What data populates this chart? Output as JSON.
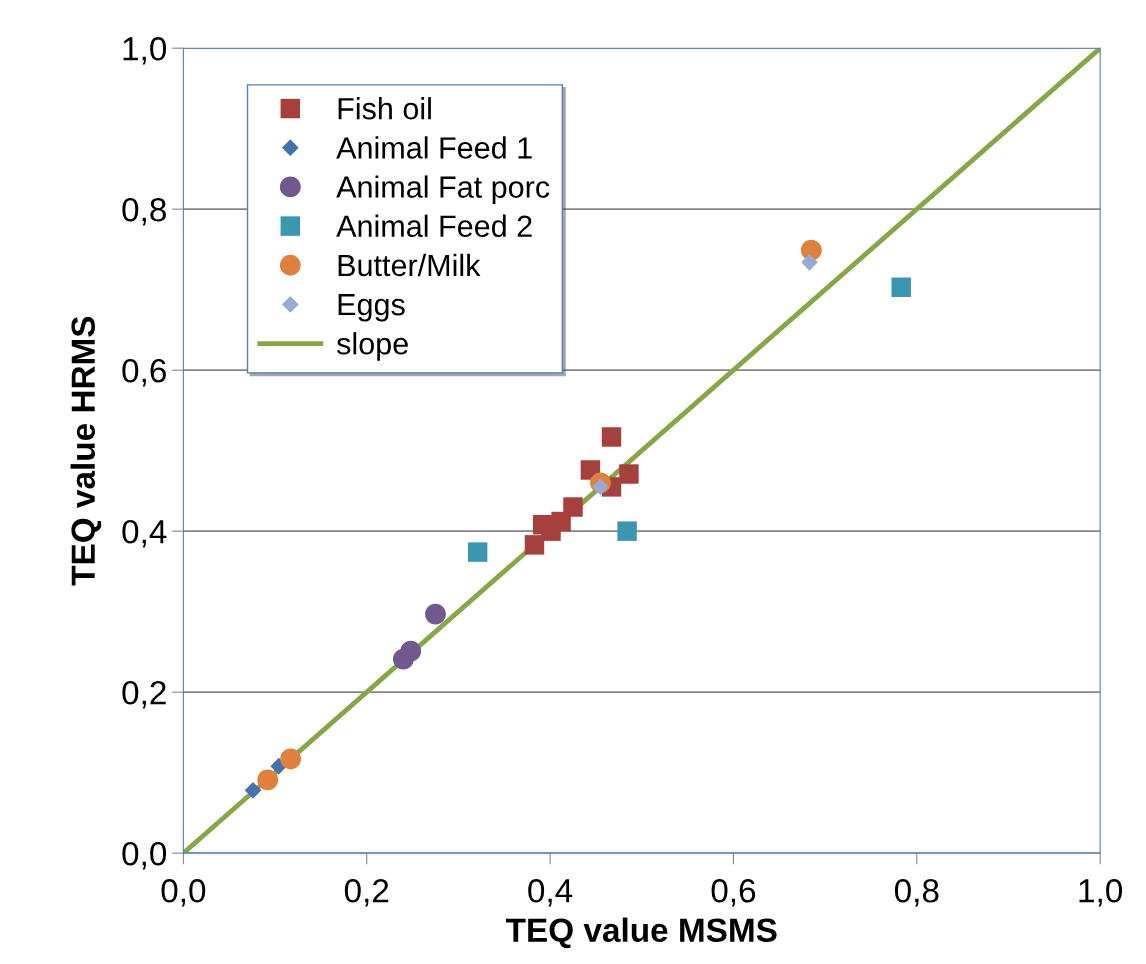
{
  "chart_data": {
    "type": "scatter",
    "xlabel": "TEQ value MSMS",
    "ylabel": "TEQ value HRMS",
    "xlim": [
      0,
      1
    ],
    "ylim": [
      0,
      1
    ],
    "xticks": [
      {
        "value": 0,
        "label": "0,0"
      },
      {
        "value": 0.2,
        "label": "0,2"
      },
      {
        "value": 0.4,
        "label": "0,4"
      },
      {
        "value": 0.6,
        "label": "0,6"
      },
      {
        "value": 0.8,
        "label": "0,8"
      },
      {
        "value": 1,
        "label": "1,0"
      }
    ],
    "yticks": [
      {
        "value": 0,
        "label": "0,0"
      },
      {
        "value": 0.2,
        "label": "0,2"
      },
      {
        "value": 0.4,
        "label": "0,4"
      },
      {
        "value": 0.6,
        "label": "0,6"
      },
      {
        "value": 0.8,
        "label": "0,8"
      },
      {
        "value": 1,
        "label": "1,0"
      }
    ],
    "grid": "y",
    "legend": "top left",
    "series": [
      {
        "name": "Fish oil",
        "color": "#a5403d",
        "marker": "square",
        "x": [
          0.467,
          0.444,
          0.486,
          0.467,
          0.432,
          0.425,
          0.416,
          0.412,
          0.392,
          0.401,
          0.383
        ],
        "values": [
          0.517,
          0.476,
          0.471,
          0.455,
          null,
          0.43,
          null,
          0.412,
          0.408,
          0.4,
          0.383
        ]
      },
      {
        "name": "Animal Feed 1",
        "color": "#4472b0",
        "marker": "diamond",
        "x": [
          0.076,
          0.09,
          0.104
        ],
        "values": [
          0.078,
          null,
          0.108
        ]
      },
      {
        "name": "Animal Fat porc",
        "color": "#71588f",
        "marker": "circle",
        "x": [
          0.275,
          0.248,
          0.24
        ],
        "values": [
          0.297,
          0.251,
          0.241
        ]
      },
      {
        "name": "Animal Feed 2",
        "color": "#3b96af",
        "marker": "square",
        "x": [
          0.484,
          0.321,
          0.783
        ],
        "values": [
          0.4,
          0.374,
          0.703
        ]
      },
      {
        "name": "Butter/Milk",
        "color": "#e0803a",
        "marker": "circle",
        "x": [
          0.455,
          0.685,
          0.117,
          0.092
        ],
        "values": [
          0.46,
          0.749,
          0.117,
          0.091
        ]
      },
      {
        "name": "Eggs",
        "color": "#95abd5",
        "marker": "diamond",
        "x": [
          0.455,
          0.683
        ],
        "values": [
          0.455,
          0.734
        ]
      },
      {
        "name": "slope",
        "type": "line",
        "color": "#86a843",
        "marker": "none",
        "x": [
          0,
          1
        ],
        "values": [
          0,
          1
        ]
      }
    ]
  }
}
